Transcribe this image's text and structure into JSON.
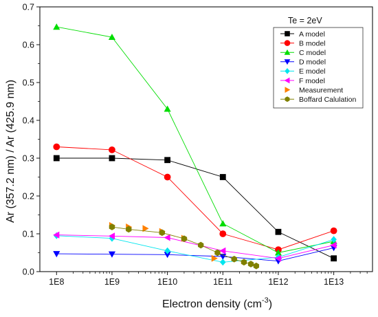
{
  "chart_data": {
    "type": "scatter",
    "annotation": "Te = 2eV",
    "xlabel_main": "Electron density (cm",
    "xlabel_sup": "-3",
    "xlabel_end": ")",
    "ylabel": "Ar (357.2 nm) / Ar (425.9 nm)",
    "x_scale": "log",
    "xlim": [
      50000000,
      50000000000000.0
    ],
    "ylim": [
      0,
      0.7
    ],
    "x_ticks": [
      100000000.0,
      1000000000.0,
      10000000000.0,
      100000000000.0,
      1000000000000.0,
      10000000000000.0
    ],
    "x_tick_labels": [
      "1E8",
      "1E9",
      "1E10",
      "1E11",
      "1E12",
      "1E13"
    ],
    "y_ticks": [
      0.0,
      0.1,
      0.2,
      0.3,
      0.4,
      0.5,
      0.6,
      0.7
    ],
    "y_tick_labels": [
      "0.0",
      "0.1",
      "0.2",
      "0.3",
      "0.4",
      "0.5",
      "0.6",
      "0.7"
    ],
    "grid": false,
    "legend_position": "top-right",
    "series": [
      {
        "name": "A model",
        "color": "#000000",
        "marker": "square",
        "line": true,
        "x": [
          100000000.0,
          1000000000.0,
          10000000000.0,
          100000000000.0,
          1000000000000.0,
          10000000000000.0
        ],
        "y": [
          0.3,
          0.3,
          0.295,
          0.25,
          0.105,
          0.035
        ]
      },
      {
        "name": "B model",
        "color": "#ff0000",
        "marker": "circle",
        "line": true,
        "x": [
          100000000.0,
          1000000000.0,
          10000000000.0,
          100000000000.0,
          1000000000000.0,
          10000000000000.0
        ],
        "y": [
          0.33,
          0.322,
          0.25,
          0.1,
          0.058,
          0.108
        ]
      },
      {
        "name": "C model",
        "color": "#00dd00",
        "marker": "triangle-up",
        "line": true,
        "x": [
          100000000.0,
          1000000000.0,
          10000000000.0,
          100000000000.0,
          1000000000000.0,
          10000000000000.0
        ],
        "y": [
          0.647,
          0.62,
          0.43,
          0.127,
          0.05,
          0.08
        ]
      },
      {
        "name": "D model",
        "color": "#0000ff",
        "marker": "triangle-down",
        "line": true,
        "x": [
          100000000.0,
          1000000000.0,
          10000000000.0,
          100000000000.0,
          1000000000000.0,
          10000000000000.0
        ],
        "y": [
          0.047,
          0.046,
          0.045,
          0.04,
          0.028,
          0.063
        ]
      },
      {
        "name": "E model",
        "color": "#00e5ee",
        "marker": "diamond",
        "line": true,
        "x": [
          100000000.0,
          1000000000.0,
          10000000000.0,
          100000000000.0,
          1000000000000.0,
          10000000000000.0
        ],
        "y": [
          0.095,
          0.088,
          0.055,
          0.025,
          0.038,
          0.085
        ]
      },
      {
        "name": "F model",
        "color": "#ff00ff",
        "marker": "triangle-left",
        "line": true,
        "x": [
          100000000.0,
          1000000000.0,
          10000000000.0,
          100000000000.0,
          1000000000000.0,
          10000000000000.0
        ],
        "y": [
          0.097,
          0.094,
          0.09,
          0.055,
          0.035,
          0.07
        ]
      },
      {
        "name": "Measurement",
        "color": "#ff8000",
        "marker": "triangle-right",
        "line": false,
        "x": [
          1000000000.0,
          2000000000.0,
          4000000000.0,
          8000000000.0,
          20000000000.0,
          70000000000.0
        ],
        "y": [
          0.122,
          0.118,
          0.114,
          0.106,
          0.088,
          0.035
        ]
      },
      {
        "name": "Boffard Calulation",
        "color": "#808000",
        "marker": "hexagon",
        "line": true,
        "x": [
          1000000000.0,
          2000000000.0,
          8000000000.0,
          20000000000.0,
          40000000000.0,
          80000000000.0,
          160000000000.0,
          240000000000.0,
          320000000000.0,
          400000000000.0
        ],
        "y": [
          0.118,
          0.112,
          0.103,
          0.087,
          0.07,
          0.05,
          0.033,
          0.025,
          0.02,
          0.015
        ]
      }
    ]
  }
}
